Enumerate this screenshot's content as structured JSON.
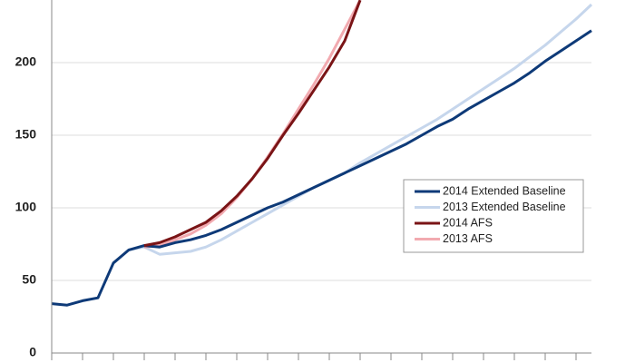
{
  "chart_data": {
    "type": "line",
    "categories": [
      null,
      null,
      null,
      null,
      null,
      null,
      null,
      null,
      null,
      null,
      null,
      null,
      null,
      null,
      null,
      null,
      null,
      null,
      null,
      null,
      null,
      null,
      null,
      null,
      null,
      null,
      null,
      null,
      null,
      null,
      null,
      null,
      null,
      null,
      null,
      null
    ],
    "series": [
      {
        "name": "2014 Extended Baseline",
        "color": "#0e3a78",
        "values": [
          34,
          33,
          36,
          38,
          62,
          71,
          74,
          73,
          76,
          78,
          81,
          85,
          90,
          95,
          100,
          104,
          109,
          114,
          119,
          124,
          129,
          134,
          139,
          144,
          150,
          156,
          161,
          168,
          174,
          180,
          186,
          193,
          201,
          208,
          215,
          222
        ]
      },
      {
        "name": "2013 Extended Baseline",
        "color": "#c6d6ec",
        "values": [
          null,
          null,
          null,
          null,
          null,
          71,
          73,
          68,
          69,
          70,
          73,
          78,
          84,
          90,
          96,
          102,
          108,
          114,
          119,
          124,
          131,
          137,
          143,
          149,
          155,
          161,
          168,
          175,
          182,
          189,
          196,
          204,
          212,
          221,
          230,
          240
        ]
      },
      {
        "name": "2014 AFS",
        "color": "#7a1416",
        "values": [
          null,
          null,
          null,
          null,
          null,
          null,
          74,
          76,
          80,
          85,
          90,
          98,
          108,
          120,
          134,
          150,
          165,
          181,
          197,
          215,
          243,
          null,
          null,
          null,
          null,
          null,
          null,
          null,
          null,
          null,
          null,
          null,
          null,
          null,
          null,
          null
        ]
      },
      {
        "name": "2013 AFS",
        "color": "#f2aab0",
        "values": [
          null,
          null,
          null,
          null,
          null,
          null,
          73,
          74,
          78,
          82,
          88,
          96,
          107,
          120,
          135,
          151,
          168,
          185,
          203,
          223,
          243,
          null,
          null,
          null,
          null,
          null,
          null,
          null,
          null,
          null,
          null,
          null,
          null,
          null,
          null,
          null
        ]
      }
    ],
    "ylim": [
      0,
      243
    ],
    "yticks": [
      0,
      50,
      100,
      150,
      200
    ],
    "grid": true,
    "legend": "right"
  }
}
